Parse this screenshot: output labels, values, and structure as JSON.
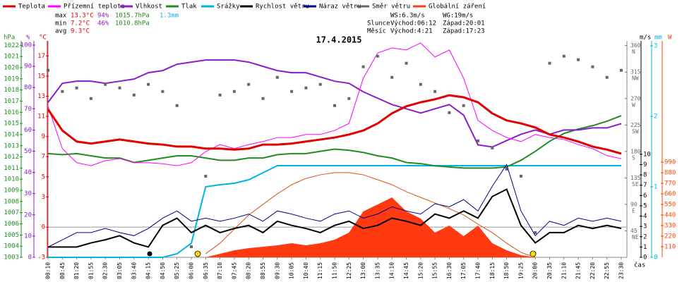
{
  "chart_data": {
    "type": "line",
    "title": "17.4.2015",
    "x_label": "čas",
    "categories": [
      "00:10",
      "00:45",
      "01:20",
      "01:55",
      "02:30",
      "03:05",
      "03:40",
      "04:15",
      "04:50",
      "05:25",
      "06:00",
      "06:35",
      "07:10",
      "07:45",
      "08:20",
      "08:55",
      "09:30",
      "10:05",
      "10:40",
      "11:15",
      "11:50",
      "12:25",
      "13:00",
      "13:35",
      "14:10",
      "14:45",
      "15:20",
      "15:55",
      "16:30",
      "17:05",
      "17:40",
      "18:15",
      "18:50",
      "19:25",
      "20:00",
      "20:35",
      "21:10",
      "21:45",
      "22:20",
      "22:55",
      "23:30"
    ],
    "axes": {
      "pressure": {
        "label": "hPa",
        "color": "#228b22",
        "lim": [
          1003,
          1022.4
        ],
        "ticks": [
          1003,
          1004,
          1005,
          1006,
          1007,
          1008,
          1009,
          1010,
          1011,
          1012,
          1013,
          1014,
          1015,
          1016,
          1017,
          1018,
          1019,
          1020,
          1021,
          1022
        ]
      },
      "humidity": {
        "label": "%",
        "color": "#8a1ccc",
        "lim": [
          0,
          102
        ],
        "ticks": [
          0,
          10,
          20,
          30,
          40,
          50,
          60,
          70,
          80,
          90,
          100
        ]
      },
      "temperature": {
        "label": "°C",
        "color": "#e00000",
        "lim": [
          -3,
          18.5
        ],
        "ticks": [
          -3,
          0,
          3,
          5,
          7,
          9,
          11,
          13,
          15,
          17
        ]
      },
      "speed": {
        "label": "m/s",
        "color": "#000000",
        "lim": [
          0,
          21
        ],
        "ticks": [
          0,
          1,
          2,
          3,
          4,
          5,
          6,
          7,
          8,
          9,
          10
        ]
      },
      "rain": {
        "label": "mm",
        "color": "#00b4e0",
        "lim": [
          0,
          3.07
        ],
        "ticks": [
          0,
          1,
          2,
          3
        ]
      },
      "radiation": {
        "label": "W",
        "color": "#ff4500",
        "lim": [
          0,
          2250
        ],
        "ticks": [
          110,
          220,
          330,
          440,
          550,
          660,
          770,
          880,
          990
        ]
      },
      "direction": {
        "color": "#666666",
        "lim": [
          0,
          368
        ],
        "ticks": [
          45,
          90,
          135,
          180,
          225,
          270,
          315,
          360
        ],
        "tick_names": [
          "NE",
          "E",
          "SE",
          "S",
          "SW",
          "W",
          "NW",
          "N"
        ]
      }
    },
    "hline": 0,
    "series": [
      {
        "name": "Teplota",
        "color": "#e00000",
        "axis": "temperature",
        "width": 3,
        "values": [
          11.7,
          9.6,
          8.5,
          8.3,
          8.5,
          8.7,
          8.5,
          8.3,
          8.2,
          8.0,
          8.0,
          7.8,
          7.8,
          7.7,
          7.8,
          8.2,
          8.2,
          8.3,
          8.5,
          8.7,
          8.9,
          9.2,
          9.6,
          10.3,
          11.3,
          12.0,
          12.4,
          12.7,
          13.1,
          12.9,
          12.4,
          11.3,
          10.6,
          10.3,
          9.9,
          9.2,
          8.9,
          8.5,
          8.0,
          7.7,
          7.3
        ]
      },
      {
        "name": "Přízemní teplota",
        "color": "#ff00ff",
        "axis": "temperature",
        "width": 1,
        "values": [
          12.0,
          7.8,
          6.4,
          6.1,
          6.6,
          6.8,
          6.4,
          6.4,
          6.3,
          6.1,
          6.4,
          7.5,
          8.2,
          7.8,
          8.2,
          8.5,
          8.9,
          8.9,
          9.2,
          9.2,
          9.6,
          10.3,
          14.8,
          17.3,
          17.8,
          17.6,
          18.3,
          16.9,
          17.6,
          14.8,
          10.6,
          9.6,
          8.9,
          8.5,
          9.2,
          8.9,
          8.7,
          8.2,
          7.8,
          7.1,
          6.8
        ]
      },
      {
        "name": "Vlhkost",
        "color": "#8a1ccc",
        "axis": "humidity",
        "width": 2,
        "values": [
          73,
          82,
          83,
          83,
          82,
          83,
          84,
          87,
          88,
          91,
          92,
          93,
          93,
          93,
          92,
          90,
          88,
          87,
          87,
          85,
          83,
          82,
          78,
          75,
          72,
          70,
          68,
          70,
          72,
          67,
          53,
          52,
          55,
          58,
          60,
          58,
          60,
          60,
          61,
          61,
          63
        ]
      },
      {
        "name": "Tlak",
        "color": "#228b22",
        "axis": "pressure",
        "width": 2,
        "values": [
          1012.3,
          1012.2,
          1012.3,
          1012.1,
          1011.9,
          1011.9,
          1011.5,
          1011.7,
          1011.9,
          1012.1,
          1012.1,
          1011.9,
          1011.7,
          1011.7,
          1011.9,
          1011.9,
          1012.2,
          1012.3,
          1012.3,
          1012.5,
          1012.7,
          1012.6,
          1012.4,
          1012.1,
          1011.9,
          1011.5,
          1011.4,
          1011.2,
          1011.1,
          1011.0,
          1011.0,
          1011.0,
          1011.1,
          1011.7,
          1012.5,
          1013.4,
          1014.1,
          1014.5,
          1014.8,
          1015.2,
          1015.7
        ]
      },
      {
        "name": "Srážky",
        "color": "#00b4e0",
        "axis": "rain",
        "width": 2,
        "values": [
          0,
          0,
          0,
          0,
          0,
          0,
          0,
          0,
          0,
          0.05,
          0.2,
          1.0,
          1.03,
          1.05,
          1.1,
          1.2,
          1.3,
          1.3,
          1.3,
          1.3,
          1.3,
          1.3,
          1.3,
          1.3,
          1.3,
          1.3,
          1.3,
          1.3,
          1.3,
          1.3,
          1.3,
          1.3,
          1.3,
          1.3,
          1.3,
          1.3,
          1.3,
          1.3,
          1.3,
          1.3,
          1.3
        ]
      },
      {
        "name": "Rychlost větru",
        "color": "#000000",
        "axis": "speed",
        "width": 2,
        "values": [
          1.0,
          1.0,
          1.0,
          1.4,
          1.7,
          2.1,
          1.4,
          1.0,
          3.1,
          3.8,
          2.4,
          3.1,
          2.4,
          2.8,
          3.1,
          2.4,
          3.5,
          3.1,
          2.8,
          2.4,
          3.1,
          3.5,
          2.8,
          3.1,
          3.8,
          3.5,
          3.1,
          4.2,
          3.8,
          4.5,
          3.8,
          5.9,
          6.6,
          3.1,
          1.4,
          2.4,
          2.4,
          3.1,
          2.8,
          3.1,
          2.8
        ]
      },
      {
        "name": "Náraz větru",
        "color": "#00008b",
        "axis": "speed",
        "width": 1,
        "values": [
          1.0,
          1.7,
          2.4,
          2.4,
          2.8,
          2.4,
          2.1,
          2.8,
          3.8,
          4.5,
          3.5,
          3.8,
          3.5,
          3.8,
          4.2,
          3.5,
          4.5,
          4.2,
          3.8,
          3.5,
          4.2,
          4.5,
          3.8,
          4.2,
          4.9,
          4.5,
          4.2,
          5.2,
          4.9,
          5.6,
          4.5,
          6.9,
          9.0,
          4.5,
          2.1,
          3.5,
          3.1,
          3.8,
          3.5,
          3.8,
          3.5
        ]
      },
      {
        "name": "Směr větru",
        "color": "#666666",
        "axis": "direction",
        "style": "points",
        "values": [
          318,
          282,
          288,
          270,
          294,
          288,
          276,
          294,
          282,
          258,
          18,
          138,
          276,
          282,
          294,
          270,
          306,
          282,
          288,
          294,
          258,
          270,
          324,
          342,
          306,
          330,
          294,
          282,
          246,
          258,
          198,
          186,
          150,
          138,
          42,
          330,
          342,
          336,
          324,
          306,
          318
        ]
      },
      {
        "name": "Globální záření",
        "color": "#ff3a10",
        "axis": "radiation",
        "style": "area",
        "values": [
          0,
          0,
          0,
          0,
          0,
          0,
          0,
          0,
          0,
          0,
          0,
          0,
          37,
          73,
          95,
          110,
          125,
          147,
          125,
          147,
          183,
          257,
          477,
          550,
          623,
          477,
          403,
          257,
          330,
          220,
          330,
          147,
          73,
          22,
          0,
          0,
          0,
          0,
          0,
          0,
          0
        ]
      },
      {
        "color": "#e05010",
        "axis": "radiation",
        "width": 1,
        "values": [
          null,
          null,
          null,
          null,
          null,
          null,
          null,
          null,
          null,
          null,
          null,
          37,
          147,
          293,
          440,
          550,
          660,
          755,
          821,
          858,
          880,
          880,
          858,
          807,
          755,
          682,
          623,
          565,
          506,
          440,
          345,
          257,
          147,
          51,
          0,
          null,
          null,
          null,
          null,
          null,
          null
        ]
      }
    ],
    "stats": {
      "rows": [
        {
          "label": "max",
          "temperature": "13.3°C",
          "humidity": "94%",
          "pressure": "1015.7hPa",
          "rain": "1.3mm"
        },
        {
          "label": "min",
          "temperature": "7.2°C",
          "humidity": "46%",
          "pressure": "1010.8hPa"
        },
        {
          "label": "avg",
          "temperature": "9.3°C"
        }
      ],
      "wind": [
        "WS:6.3m/s",
        "WG:19m/s"
      ],
      "sun": [
        "Slunce",
        "Východ:06:12",
        "Západ:20:01"
      ],
      "moon": [
        "Měsíc",
        "Východ:4:21",
        "Západ:17:23"
      ]
    }
  }
}
